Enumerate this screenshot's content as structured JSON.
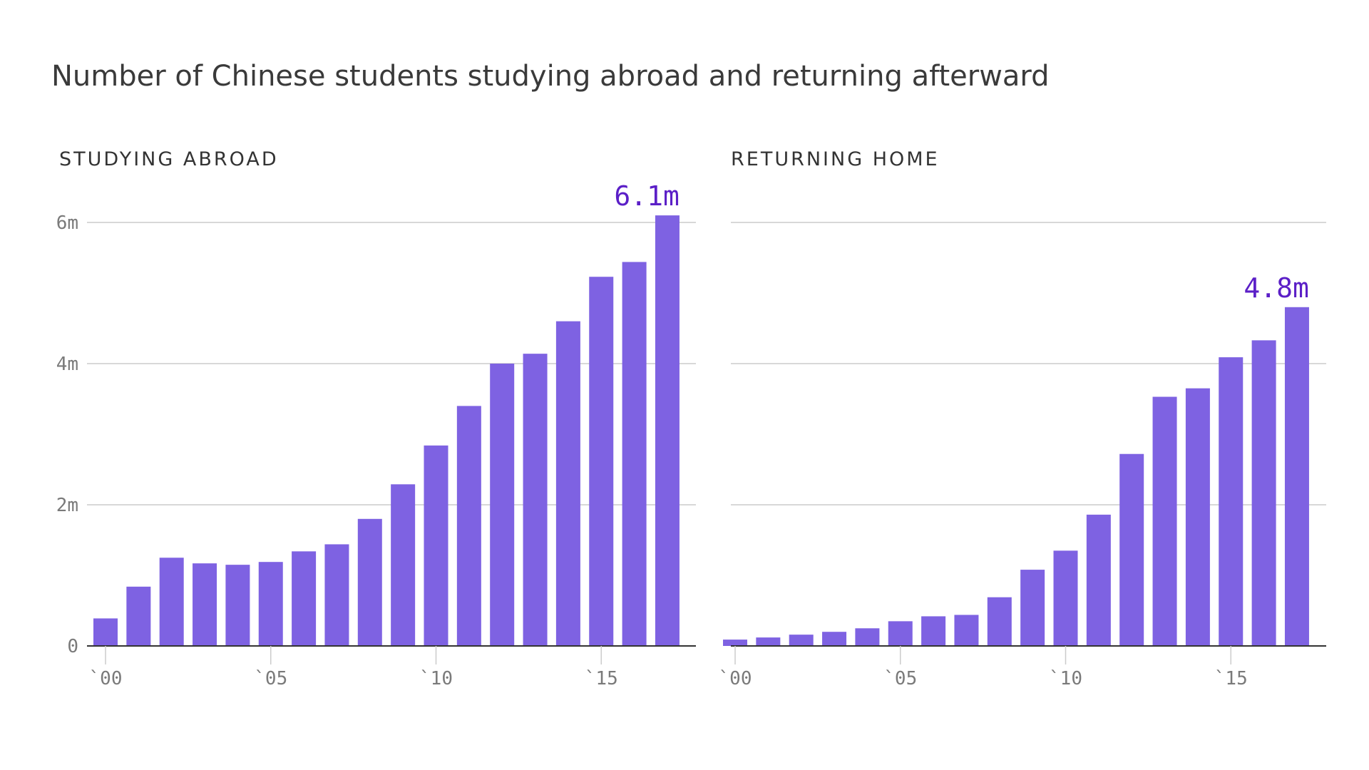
{
  "title": "Number of Chinese students studying abroad and returning afterward",
  "colors": {
    "bar": "#7e62e2",
    "highlight_label": "#5b1fc7",
    "grid": "#cccccc",
    "axis": "#333333",
    "tick_text": "#7a7a7a"
  },
  "chart_data": [
    {
      "type": "bar",
      "panel_title": "STUDYING ABROAD",
      "x": [
        2000,
        2001,
        2002,
        2003,
        2004,
        2005,
        2006,
        2007,
        2008,
        2009,
        2010,
        2011,
        2012,
        2013,
        2014,
        2015,
        2016,
        2017
      ],
      "values": [
        0.39,
        0.84,
        1.25,
        1.17,
        1.15,
        1.19,
        1.34,
        1.44,
        1.8,
        2.29,
        2.84,
        3.4,
        4.0,
        4.14,
        4.6,
        5.23,
        5.44,
        6.1
      ],
      "value_unit": "million",
      "ylim": [
        0,
        6
      ],
      "y_ticks": [
        0,
        2,
        4,
        6
      ],
      "y_tick_labels": [
        "0",
        "2m",
        "4m",
        "6m"
      ],
      "x_ticks": [
        2000,
        2005,
        2010,
        2015
      ],
      "x_tick_labels": [
        "`00",
        "`05",
        "`10",
        "`15"
      ],
      "annotation": {
        "x": 2017,
        "text": "6.1m"
      },
      "grid": true
    },
    {
      "type": "bar",
      "panel_title": "RETURNING HOME",
      "x": [
        2000,
        2001,
        2002,
        2003,
        2004,
        2005,
        2006,
        2007,
        2008,
        2009,
        2010,
        2011,
        2012,
        2013,
        2014,
        2015,
        2016,
        2017
      ],
      "values": [
        0.09,
        0.12,
        0.16,
        0.2,
        0.25,
        0.35,
        0.42,
        0.44,
        0.69,
        1.08,
        1.35,
        1.86,
        2.72,
        3.53,
        3.65,
        4.09,
        4.33,
        4.8
      ],
      "value_unit": "million",
      "ylim": [
        0,
        6
      ],
      "y_ticks": [
        0,
        2,
        4,
        6
      ],
      "y_tick_labels": [
        "",
        "",
        "",
        ""
      ],
      "x_ticks": [
        2000,
        2005,
        2010,
        2015
      ],
      "x_tick_labels": [
        "`00",
        "`05",
        "`10",
        "`15"
      ],
      "annotation": {
        "x": 2017,
        "text": "4.8m"
      },
      "grid": true
    }
  ]
}
